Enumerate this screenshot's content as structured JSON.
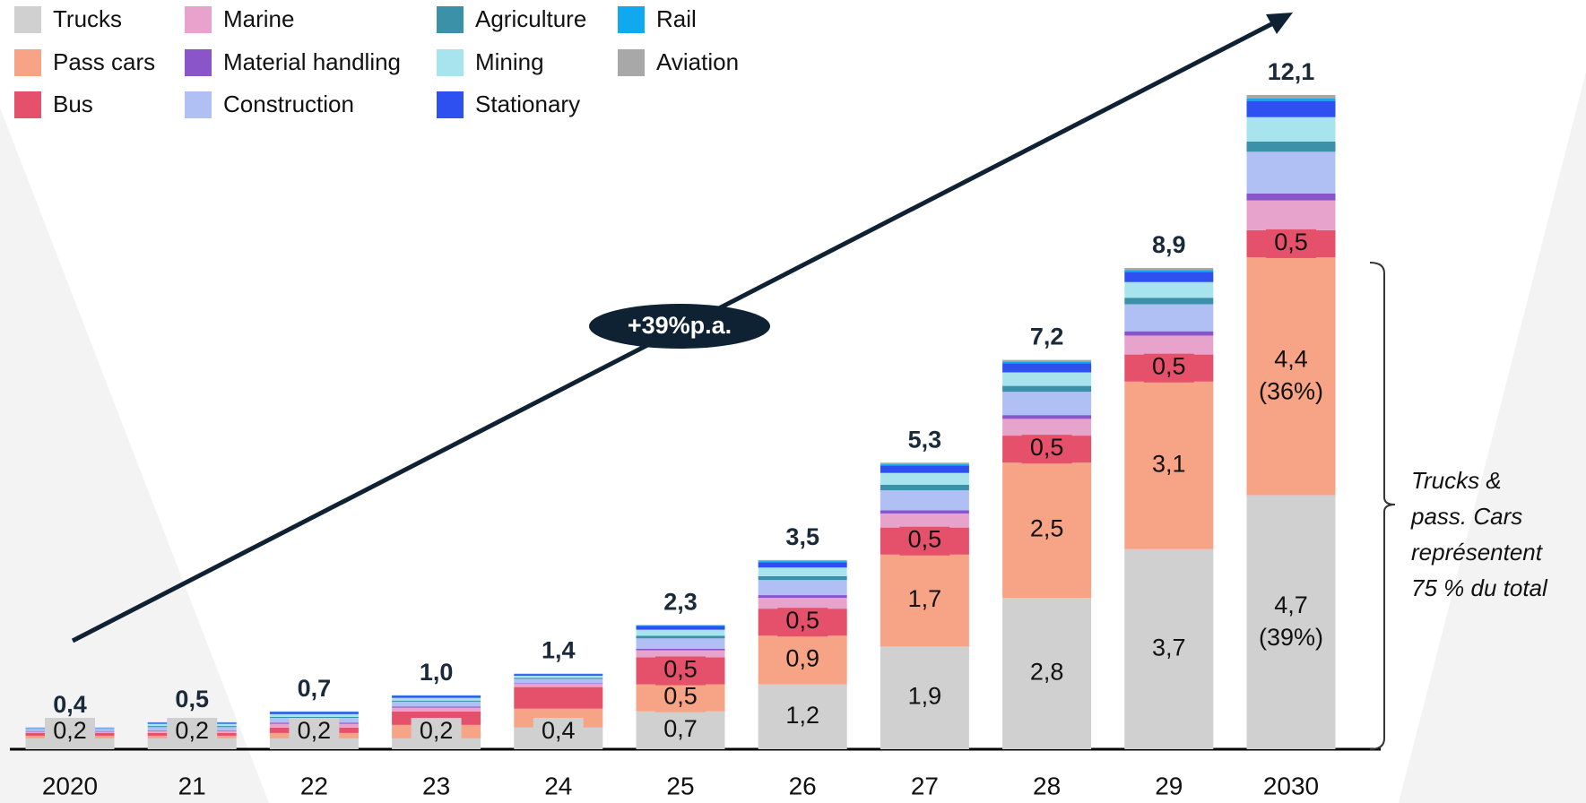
{
  "chart_data": {
    "type": "stacked_bar",
    "categories": [
      "2020",
      "21",
      "22",
      "23",
      "24",
      "25",
      "26",
      "27",
      "28",
      "29",
      "2030"
    ],
    "series": [
      {
        "name": "Trucks",
        "color": "#d0d0d0",
        "values": [
          0.2,
          0.2,
          0.2,
          0.2,
          0.4,
          0.7,
          1.2,
          1.9,
          2.8,
          3.7,
          4.7
        ],
        "value_labels": [
          "0,2",
          "0,2",
          "0,2",
          "0,2",
          "0,4",
          "0,7",
          "1,2",
          "1,9",
          "2,8",
          "3,7",
          "4,7\n(39%)"
        ]
      },
      {
        "name": "Pass cars",
        "color": "#f7a386",
        "values": [
          0.05,
          0.05,
          0.1,
          0.25,
          0.35,
          0.5,
          0.9,
          1.7,
          2.5,
          3.1,
          4.4
        ],
        "value_labels": [
          null,
          null,
          null,
          null,
          null,
          "0,5",
          "0,9",
          "1,7",
          "2,5",
          "3,1",
          "4,4\n(36%)"
        ]
      },
      {
        "name": "Bus",
        "color": "#e5506a",
        "values": [
          0.05,
          0.05,
          0.1,
          0.25,
          0.4,
          0.5,
          0.5,
          0.5,
          0.5,
          0.5,
          0.5
        ],
        "value_labels": [
          null,
          null,
          null,
          null,
          null,
          "0,5",
          "0,5",
          "0,5",
          "0,5",
          "0,5",
          "0,5"
        ]
      },
      {
        "name": "Marine",
        "color": "#e8a3cc",
        "values": [
          0.02,
          0.04,
          0.07,
          0.07,
          0.06,
          0.13,
          0.2,
          0.26,
          0.31,
          0.35,
          0.55
        ]
      },
      {
        "name": "Material handling",
        "color": "#8a55c8",
        "values": [
          0.01,
          0.01,
          0.02,
          0.02,
          0.01,
          0.03,
          0.05,
          0.06,
          0.07,
          0.08,
          0.13
        ]
      },
      {
        "name": "Construction",
        "color": "#b0c0f5",
        "values": [
          0.03,
          0.06,
          0.09,
          0.09,
          0.08,
          0.19,
          0.28,
          0.37,
          0.43,
          0.5,
          0.77
        ]
      },
      {
        "name": "Agriculture",
        "color": "#3a91a8",
        "values": [
          0.01,
          0.02,
          0.02,
          0.02,
          0.02,
          0.05,
          0.07,
          0.1,
          0.11,
          0.12,
          0.19
        ]
      },
      {
        "name": "Mining",
        "color": "#a8e4ee",
        "values": [
          0.02,
          0.04,
          0.05,
          0.05,
          0.04,
          0.11,
          0.16,
          0.22,
          0.25,
          0.29,
          0.45
        ]
      },
      {
        "name": "Stationary",
        "color": "#2e50f0",
        "values": [
          0.01,
          0.02,
          0.04,
          0.04,
          0.03,
          0.07,
          0.1,
          0.14,
          0.17,
          0.19,
          0.3
        ]
      },
      {
        "name": "Rail",
        "color": "#10a8ee",
        "values": [
          0,
          0.005,
          0.005,
          0.005,
          0.005,
          0.01,
          0.02,
          0.02,
          0.03,
          0.03,
          0.05
        ]
      },
      {
        "name": "Aviation",
        "color": "#a8a8a8",
        "values": [
          0,
          0.005,
          0.005,
          0.005,
          0.005,
          0.01,
          0.02,
          0.03,
          0.03,
          0.04,
          0.06
        ]
      }
    ],
    "totals": [
      0.4,
      0.5,
      0.7,
      1.0,
      1.4,
      2.3,
      3.5,
      5.3,
      7.2,
      8.9,
      12.1
    ],
    "total_labels": [
      "0,4",
      "0,5",
      "0,7",
      "1,0",
      "1,4",
      "2,3",
      "3,5",
      "5,3",
      "7,2",
      "8,9",
      "12,1"
    ],
    "annotations": {
      "growth": "+39%p.a.",
      "bracket": [
        "Trucks &",
        "pass. Cars",
        "représentent",
        "75 % du total"
      ]
    }
  }
}
